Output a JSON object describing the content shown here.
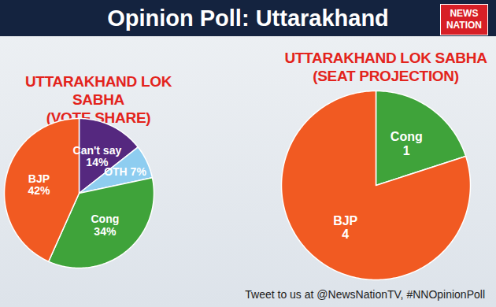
{
  "title": "Opinion Poll: Uttarakhand",
  "logo": "NEWS NATION",
  "footer": "Tweet to us at @NewsNationTV, #NNOpinionPoll",
  "chart_data": [
    {
      "type": "pie",
      "title": "UTTARAKHAND LOK SABHA",
      "subtitle": "(VOTE SHARE)",
      "categories": [
        "Can't say",
        "OTH",
        "Cong",
        "BJP"
      ],
      "values": [
        14,
        7,
        34,
        42
      ],
      "value_labels": [
        "14%",
        "7%",
        "34%",
        "42%"
      ],
      "colors": [
        "#55287f",
        "#8ecdf0",
        "#3fa33a",
        "#f15a22"
      ],
      "data_labels": true
    },
    {
      "type": "pie",
      "title": "UTTARAKHAND LOK SABHA",
      "subtitle": "(SEAT PROJECTION)",
      "categories": [
        "Cong",
        "BJP"
      ],
      "values": [
        1,
        4
      ],
      "colors": [
        "#3fa33a",
        "#f15a22"
      ],
      "data_labels": true
    }
  ]
}
